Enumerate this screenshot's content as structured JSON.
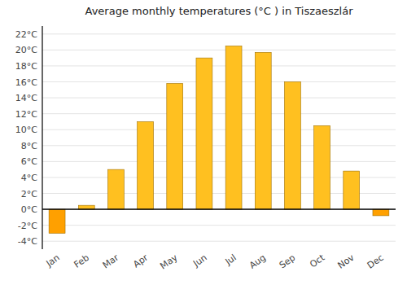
{
  "chart_data": {
    "type": "bar",
    "title": "Average monthly temperatures (°C ) in Tiszaeszlár",
    "categories": [
      "Jan",
      "Feb",
      "Mar",
      "Apr",
      "May",
      "Jun",
      "Jul",
      "Aug",
      "Sep",
      "Oct",
      "Nov",
      "Dec"
    ],
    "values": [
      -3.0,
      0.5,
      5.0,
      11.0,
      15.8,
      19.0,
      20.5,
      19.7,
      16.0,
      10.5,
      4.8,
      -0.8
    ],
    "colors": [
      "#FFA000",
      "#FFC020",
      "#FFC020",
      "#FFC020",
      "#FFC020",
      "#FFC020",
      "#FFC020",
      "#FFC020",
      "#FFC020",
      "#FFC020",
      "#FFC020",
      "#FFA000"
    ],
    "ylim": [
      -5,
      23
    ],
    "yticks": [
      {
        "value": -4,
        "label": "-4°C"
      },
      {
        "value": -2,
        "label": "-2°C"
      },
      {
        "value": 0,
        "label": "0°C"
      },
      {
        "value": 2,
        "label": "2°C"
      },
      {
        "value": 4,
        "label": "4°C"
      },
      {
        "value": 6,
        "label": "6°C"
      },
      {
        "value": 8,
        "label": "8°C"
      },
      {
        "value": 10,
        "label": "10°C"
      },
      {
        "value": 12,
        "label": "12°C"
      },
      {
        "value": 14,
        "label": "14°C"
      },
      {
        "value": 16,
        "label": "16°C"
      },
      {
        "value": 18,
        "label": "18°C"
      },
      {
        "value": 20,
        "label": "20°C"
      },
      {
        "value": 22,
        "label": "22°C"
      }
    ],
    "grid": true
  }
}
